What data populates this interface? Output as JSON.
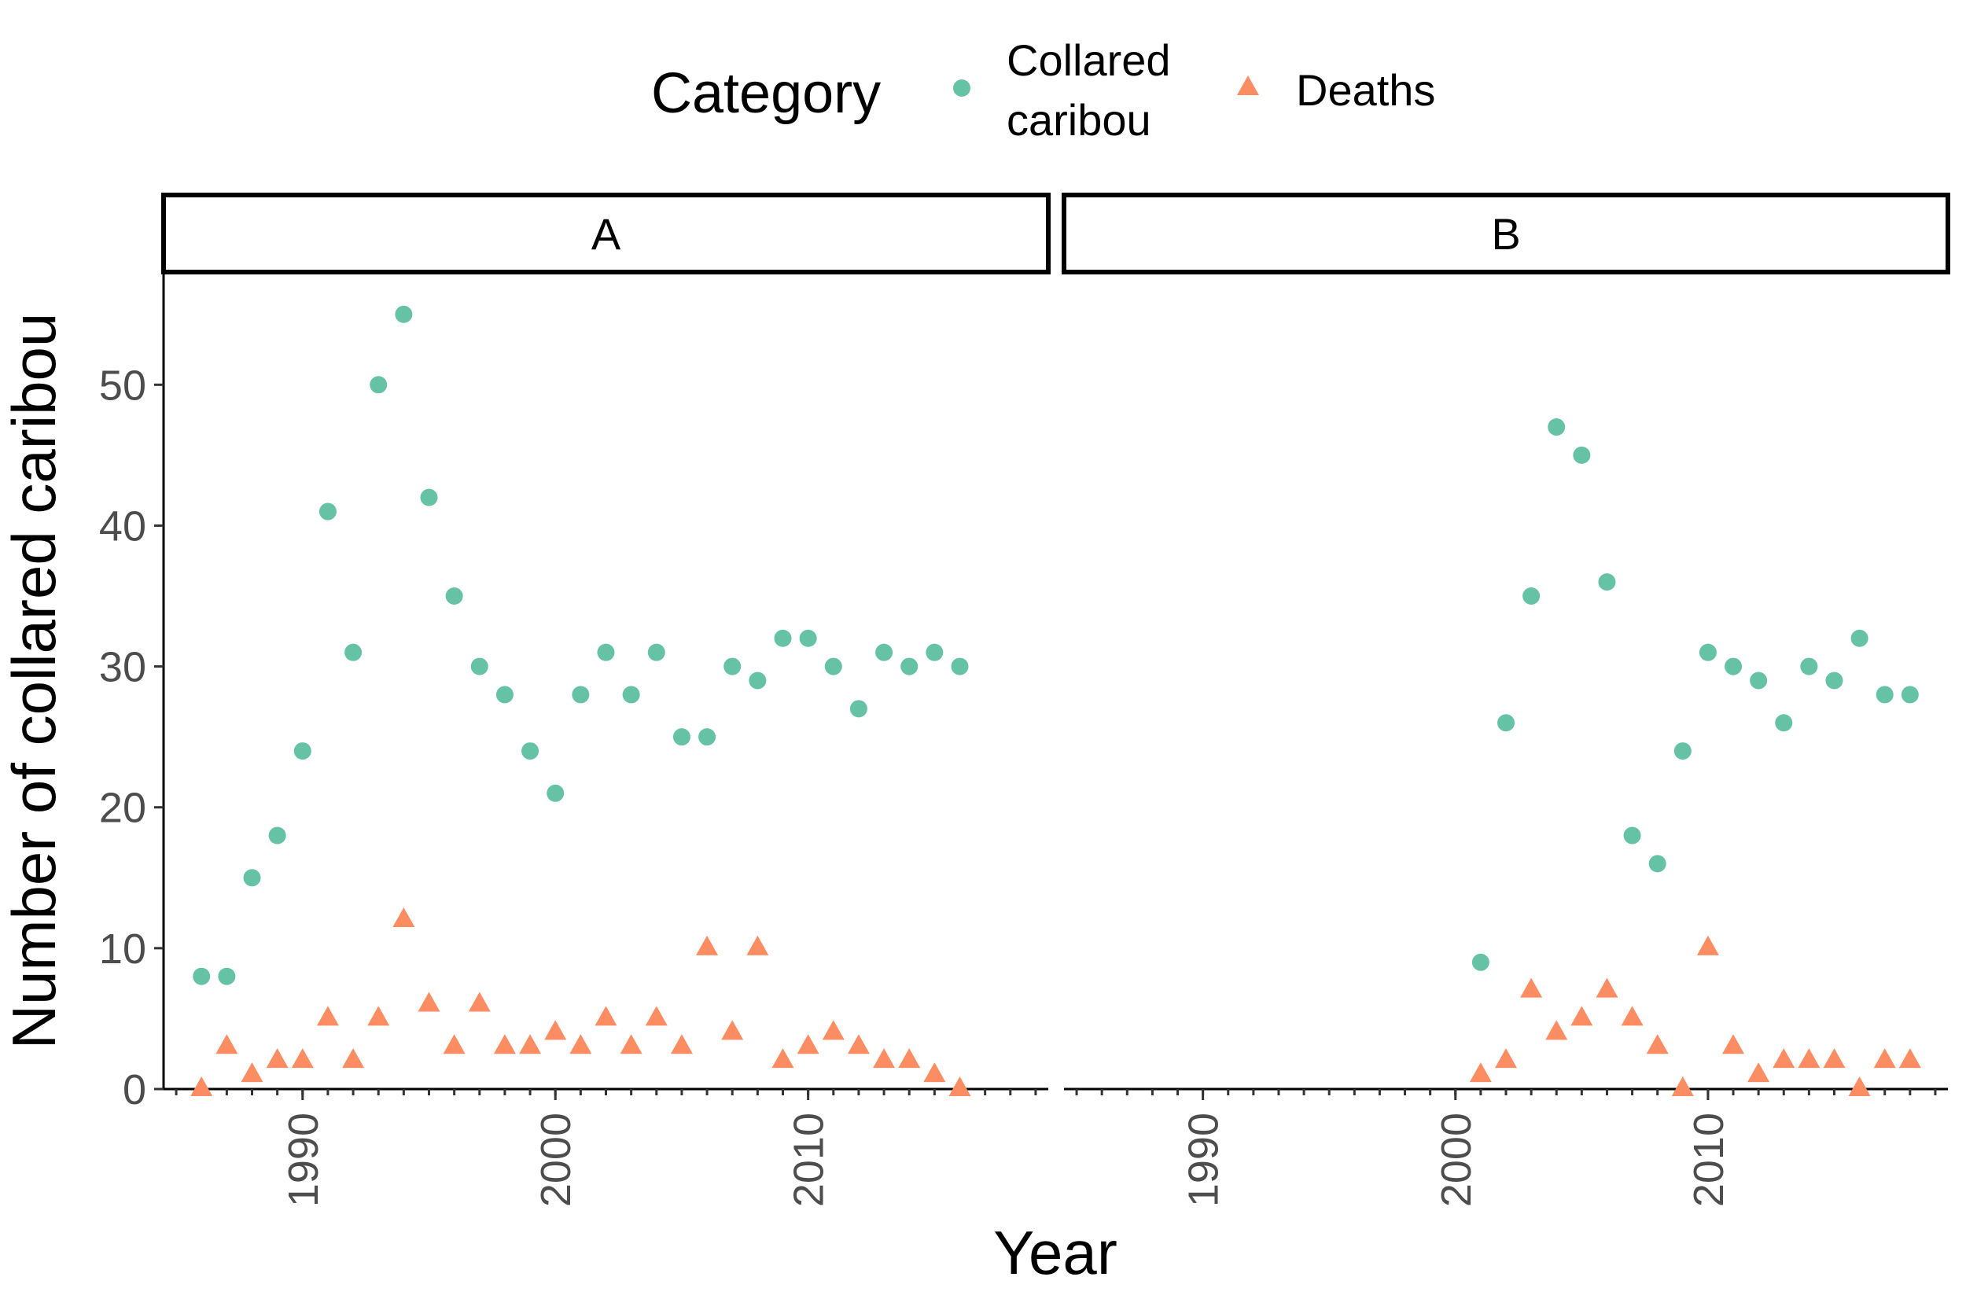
{
  "chart_data": {
    "type": "scatter",
    "facet_labels": [
      "A",
      "B"
    ],
    "xlabel": "Year",
    "ylabel": "Number of collared caribou",
    "xlim": [
      1984.5,
      2019.5
    ],
    "ylim": [
      0,
      58
    ],
    "x_ticks": [
      1990,
      2000,
      2010
    ],
    "y_ticks": [
      0,
      10,
      20,
      30,
      40,
      50
    ],
    "legend": {
      "title": "Category",
      "position": "top",
      "entries": [
        {
          "label_lines": [
            "Collared",
            "caribou"
          ],
          "shape": "circle",
          "color": "#66C2A5"
        },
        {
          "label_lines": [
            "Deaths"
          ],
          "shape": "triangle",
          "color": "#FC8D62"
        }
      ]
    },
    "panels": [
      {
        "label": "A",
        "series": [
          {
            "name": "Collared caribou",
            "shape": "circle",
            "color": "#66C2A5",
            "x": [
              1986,
              1987,
              1988,
              1989,
              1990,
              1991,
              1992,
              1993,
              1994,
              1995,
              1996,
              1997,
              1998,
              1999,
              2000,
              2001,
              2002,
              2003,
              2004,
              2005,
              2006,
              2007,
              2008,
              2009,
              2010,
              2011,
              2012,
              2013,
              2014,
              2015,
              2016
            ],
            "y": [
              8,
              8,
              15,
              18,
              24,
              41,
              31,
              50,
              55,
              42,
              35,
              30,
              28,
              24,
              21,
              28,
              31,
              28,
              31,
              25,
              25,
              30,
              29,
              32,
              32,
              30,
              27,
              31,
              30,
              31,
              30
            ]
          },
          {
            "name": "Deaths",
            "shape": "triangle",
            "color": "#FC8D62",
            "x": [
              1986,
              1987,
              1988,
              1989,
              1990,
              1991,
              1992,
              1993,
              1994,
              1995,
              1996,
              1997,
              1998,
              1999,
              2000,
              2001,
              2002,
              2003,
              2004,
              2005,
              2006,
              2007,
              2008,
              2009,
              2010,
              2011,
              2012,
              2013,
              2014,
              2015,
              2016
            ],
            "y": [
              0,
              3,
              1,
              2,
              2,
              5,
              2,
              5,
              12,
              6,
              3,
              6,
              3,
              3,
              4,
              3,
              5,
              3,
              5,
              3,
              10,
              4,
              10,
              2,
              3,
              4,
              3,
              2,
              2,
              1,
              0
            ]
          }
        ]
      },
      {
        "label": "B",
        "series": [
          {
            "name": "Collared caribou",
            "shape": "circle",
            "color": "#66C2A5",
            "x": [
              2001,
              2002,
              2003,
              2004,
              2005,
              2006,
              2007,
              2008,
              2009,
              2010,
              2011,
              2012,
              2013,
              2014,
              2015,
              2016,
              2017,
              2018
            ],
            "y": [
              9,
              26,
              35,
              47,
              45,
              36,
              18,
              16,
              24,
              31,
              30,
              29,
              26,
              30,
              29,
              32,
              28,
              28
            ]
          },
          {
            "name": "Deaths",
            "shape": "triangle",
            "color": "#FC8D62",
            "x": [
              2001,
              2002,
              2003,
              2004,
              2005,
              2006,
              2007,
              2008,
              2009,
              2010,
              2011,
              2012,
              2013,
              2014,
              2015,
              2016,
              2017,
              2018
            ],
            "y": [
              1,
              2,
              7,
              4,
              5,
              7,
              5,
              3,
              0,
              10,
              3,
              1,
              2,
              2,
              2,
              0,
              2,
              2
            ]
          }
        ]
      }
    ]
  }
}
